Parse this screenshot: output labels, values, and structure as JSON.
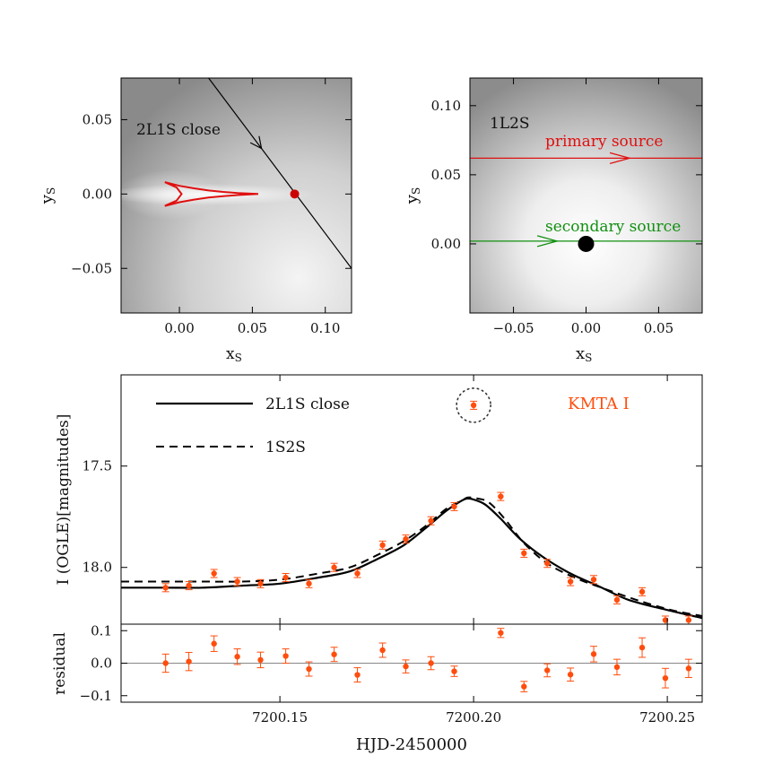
{
  "colors": {
    "caustic": "#e01010",
    "point": "#cc0000",
    "primary": "#e01010",
    "secondary": "#109010",
    "data": "#ff4d0d",
    "model": "#000000",
    "text": "#111111"
  },
  "chart_data": [
    {
      "id": "panel_2l1s",
      "type": "map",
      "label": "2L1S close",
      "xlabel": "x",
      "xlabel_sub": "S",
      "ylabel": "y",
      "ylabel_sub": "S",
      "xlim": [
        -0.04,
        0.118
      ],
      "ylim": [
        -0.08,
        0.078
      ],
      "xticks": [
        0.0,
        0.05,
        0.1
      ],
      "xtick_labels": [
        "0.00",
        "0.05",
        "0.10"
      ],
      "yticks": [
        -0.05,
        0.0,
        0.05
      ],
      "ytick_labels": [
        "−0.05",
        "0.00",
        "0.05"
      ],
      "caustic": [
        [
          -0.01,
          0.008
        ],
        [
          0.0,
          0.0055
        ],
        [
          0.01,
          0.0038
        ],
        [
          0.02,
          0.0024
        ],
        [
          0.03,
          0.0014
        ],
        [
          0.04,
          0.0007
        ],
        [
          0.054,
          0.0
        ],
        [
          0.04,
          -0.0007
        ],
        [
          0.03,
          -0.0014
        ],
        [
          0.02,
          -0.0024
        ],
        [
          0.01,
          -0.0038
        ],
        [
          0.0,
          -0.0055
        ],
        [
          -0.01,
          -0.008
        ],
        [
          -0.002,
          -0.0045
        ],
        [
          0.0015,
          0.0
        ],
        [
          -0.002,
          0.0045
        ],
        [
          -0.01,
          0.008
        ]
      ],
      "trajectory": [
        [
          0.02,
          0.078
        ],
        [
          0.118,
          -0.05
        ]
      ],
      "source_point": [
        0.079,
        0.0
      ]
    },
    {
      "id": "panel_1l2s",
      "type": "map",
      "label": "1L2S",
      "xlabel": "x",
      "xlabel_sub": "S",
      "ylabel": "y",
      "ylabel_sub": "S",
      "xlim": [
        -0.08,
        0.08
      ],
      "ylim": [
        -0.05,
        0.12
      ],
      "xticks": [
        -0.05,
        0.0,
        0.05
      ],
      "xtick_labels": [
        "−0.05",
        "0.00",
        "0.05"
      ],
      "yticks": [
        0.0,
        0.05,
        0.1
      ],
      "ytick_labels": [
        "0.00",
        "0.05",
        "0.10"
      ],
      "primary_label": "primary source",
      "secondary_label": "secondary source",
      "primary_y": 0.062,
      "secondary_y": 0.002,
      "primary_arrow_x": 0.03,
      "secondary_arrow_x": -0.02,
      "lens": [
        0.0,
        0.0
      ]
    },
    {
      "id": "lightcurve",
      "type": "scatter",
      "ylabel": "I (OGLE)[magnitudes]",
      "xlim": [
        7200.109,
        7200.259
      ],
      "ylim": [
        18.28,
        17.05
      ],
      "xticks": [
        7200.15,
        7200.2,
        7200.25
      ],
      "xtick_labels": [
        "7200.15",
        "7200.20",
        "7200.25"
      ],
      "yticks": [
        17.5,
        18.0
      ],
      "ytick_labels": [
        "17.5",
        "18.0"
      ],
      "legend": [
        {
          "name": "2L1S close",
          "style": "solid"
        },
        {
          "name": "1S2S",
          "style": "dashed"
        }
      ],
      "dataset_label": "KMTA I",
      "x": [
        7200.1205,
        7200.1265,
        7200.133,
        7200.139,
        7200.145,
        7200.1515,
        7200.1575,
        7200.164,
        7200.17,
        7200.1765,
        7200.1825,
        7200.189,
        7200.195,
        7200.2,
        7200.207,
        7200.213,
        7200.219,
        7200.225,
        7200.231,
        7200.237,
        7200.2435,
        7200.2495,
        7200.2555
      ],
      "y": [
        18.1,
        18.09,
        18.03,
        18.07,
        18.08,
        18.05,
        18.08,
        18.0,
        18.03,
        17.89,
        17.86,
        17.77,
        17.7,
        17.2,
        17.65,
        17.93,
        17.98,
        18.07,
        18.06,
        18.16,
        18.12,
        18.26,
        18.26
      ],
      "err": [
        0.02,
        0.02,
        0.02,
        0.02,
        0.02,
        0.02,
        0.02,
        0.02,
        0.02,
        0.02,
        0.02,
        0.02,
        0.02,
        0.02,
        0.02,
        0.02,
        0.02,
        0.02,
        0.02,
        0.02,
        0.02,
        0.02,
        0.02
      ],
      "outlier_index": 13,
      "model_2l1s": [
        [
          7200.109,
          18.1
        ],
        [
          7200.12,
          18.1
        ],
        [
          7200.13,
          18.1
        ],
        [
          7200.14,
          18.09
        ],
        [
          7200.15,
          18.08
        ],
        [
          7200.16,
          18.05
        ],
        [
          7200.168,
          18.02
        ],
        [
          7200.175,
          17.96
        ],
        [
          7200.182,
          17.89
        ],
        [
          7200.188,
          17.8
        ],
        [
          7200.193,
          17.72
        ],
        [
          7200.197,
          17.67
        ],
        [
          7200.1985,
          17.66
        ],
        [
          7200.2,
          17.665
        ],
        [
          7200.203,
          17.69
        ],
        [
          7200.207,
          17.76
        ],
        [
          7200.212,
          17.86
        ],
        [
          7200.218,
          17.95
        ],
        [
          7200.225,
          18.03
        ],
        [
          7200.232,
          18.09
        ],
        [
          7200.24,
          18.16
        ],
        [
          7200.25,
          18.21
        ],
        [
          7200.259,
          18.25
        ]
      ],
      "model_1s2s": [
        [
          7200.109,
          18.07
        ],
        [
          7200.12,
          18.07
        ],
        [
          7200.13,
          18.07
        ],
        [
          7200.14,
          18.07
        ],
        [
          7200.15,
          18.06
        ],
        [
          7200.16,
          18.03
        ],
        [
          7200.168,
          18.0
        ],
        [
          7200.175,
          17.94
        ],
        [
          7200.182,
          17.87
        ],
        [
          7200.188,
          17.79
        ],
        [
          7200.193,
          17.71
        ],
        [
          7200.197,
          17.67
        ],
        [
          7200.1985,
          17.655
        ],
        [
          7200.201,
          17.66
        ],
        [
          7200.204,
          17.68
        ],
        [
          7200.208,
          17.76
        ],
        [
          7200.213,
          17.88
        ],
        [
          7200.219,
          17.98
        ],
        [
          7200.226,
          18.05
        ],
        [
          7200.233,
          18.1
        ],
        [
          7200.242,
          18.16
        ],
        [
          7200.251,
          18.21
        ],
        [
          7200.259,
          18.24
        ]
      ]
    },
    {
      "id": "residuals",
      "type": "scatter",
      "ylabel": "residual",
      "xlabel": "HJD-2450000",
      "xlim": [
        7200.109,
        7200.259
      ],
      "ylim": [
        -0.12,
        0.12
      ],
      "yticks": [
        -0.1,
        0.0,
        0.1
      ],
      "ytick_labels": [
        "−0.1",
        "0.0",
        "0.1"
      ],
      "x": [
        7200.1205,
        7200.1265,
        7200.133,
        7200.139,
        7200.145,
        7200.1515,
        7200.1575,
        7200.164,
        7200.17,
        7200.1765,
        7200.1825,
        7200.189,
        7200.195,
        7200.207,
        7200.213,
        7200.219,
        7200.225,
        7200.231,
        7200.237,
        7200.2435,
        7200.2495,
        7200.2555
      ],
      "y": [
        0.0,
        0.005,
        0.06,
        0.02,
        0.01,
        0.022,
        -0.018,
        0.027,
        -0.036,
        0.04,
        -0.01,
        0.0,
        -0.025,
        0.093,
        -0.072,
        -0.022,
        -0.035,
        0.028,
        -0.012,
        0.048,
        -0.046,
        -0.016
      ],
      "err": [
        0.028,
        0.028,
        0.024,
        0.024,
        0.024,
        0.022,
        0.022,
        0.022,
        0.022,
        0.022,
        0.02,
        0.02,
        0.016,
        0.014,
        0.016,
        0.02,
        0.02,
        0.024,
        0.024,
        0.03,
        0.03,
        0.028
      ]
    }
  ]
}
